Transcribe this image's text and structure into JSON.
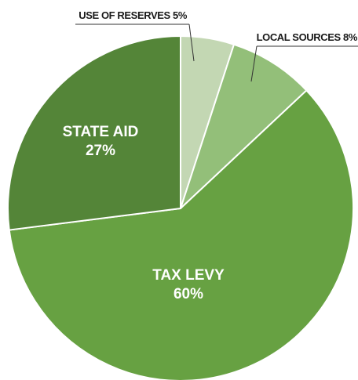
{
  "chart_data": {
    "type": "pie",
    "title": "",
    "start_angle_deg": 0,
    "direction": "clockwise",
    "slices": [
      {
        "label": "USE OF RESERVES",
        "value": 5,
        "value_text": "5%",
        "color": "#c3d7b3",
        "label_style": "callout"
      },
      {
        "label": "LOCAL SOURCES",
        "value": 8,
        "value_text": "8%",
        "color": "#93bf79",
        "label_style": "callout"
      },
      {
        "label": "TAX LEVY",
        "value": 60,
        "value_text": "60%",
        "color": "#67a142",
        "label_style": "inside"
      },
      {
        "label": "STATE AID",
        "value": 27,
        "value_text": "27%",
        "color": "#548538",
        "label_style": "inside"
      }
    ]
  }
}
